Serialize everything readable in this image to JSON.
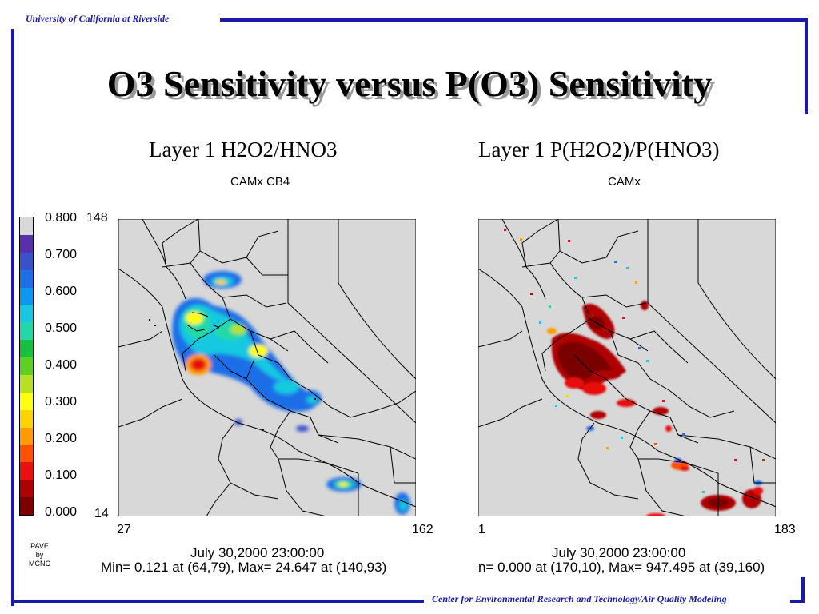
{
  "header": {
    "institution": "University of California at Riverside"
  },
  "slide": {
    "title": "O3 Sensitivity versus P(O3) Sensitivity"
  },
  "footer": {
    "center": "Center for Environmental Research and Technology/Air Quality Modeling"
  },
  "legend": {
    "labels": [
      "0.800",
      "0.700",
      "0.600",
      "0.500",
      "0.400",
      "0.300",
      "0.200",
      "0.100",
      "0.000"
    ],
    "colors": [
      "#d8d8d8",
      "#5b2fa8",
      "#3a52c8",
      "#1e6ee8",
      "#0a98f0",
      "#16c8e0",
      "#20d8a8",
      "#18c040",
      "#60d020",
      "#b8e020",
      "#ffff10",
      "#ffd400",
      "#ff9c00",
      "#ff5000",
      "#e81010",
      "#b00000",
      "#7a0000"
    ]
  },
  "left_panel": {
    "title": "Layer 1  H2O2/HNO3",
    "subtitle": "CAMx CB4",
    "y_top": "148",
    "y_bottom": "14",
    "x_left": "27",
    "x_right": "162",
    "date": "July 30,2000 23:00:00",
    "minmax": "Min=   0.121 at (64,79), Max=  24.647 at (140,93)"
  },
  "right_panel": {
    "title": "Layer 1  P(H2O2)/P(HNO3)",
    "subtitle": "CAMx",
    "x_left": "1",
    "x_right": "183",
    "date": "July 30,2000 23:00:00",
    "minmax": "n=   0.000 at (170,10), Max= 947.495 at (39,160)"
  },
  "credit": {
    "line1": "PAVE",
    "line2": "by",
    "line3": "MCNC"
  },
  "icons": {
    "colorbar": "colorbar-legend",
    "map": "california-map"
  }
}
